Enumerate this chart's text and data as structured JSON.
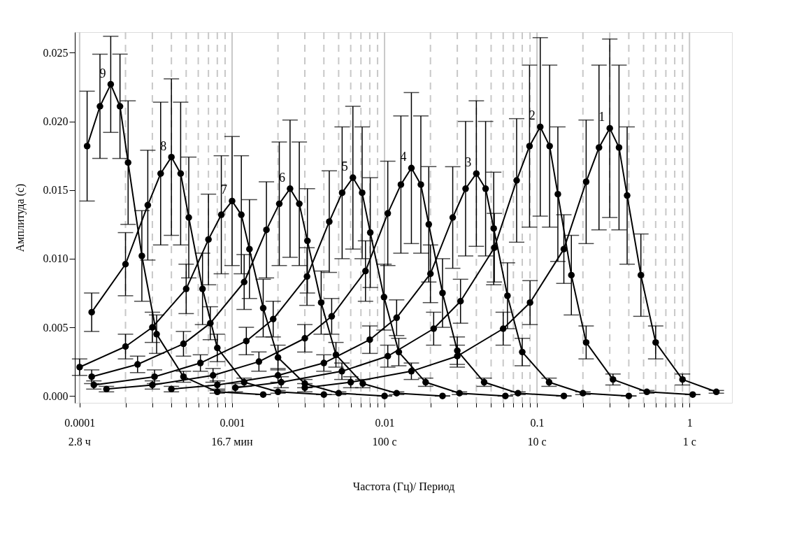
{
  "chart_data": {
    "type": "line",
    "xlabel": "Частота (Гц)/ Период",
    "ylabel": "Амплитуда (с)",
    "log": "x",
    "xlim": [
      9.3e-05,
      1.9
    ],
    "ylim": [
      -0.0005,
      0.0265
    ],
    "annotations": [
      "2.8 ч",
      "16.7 мин",
      "100 с",
      "10 с",
      "1 с"
    ],
    "xticks": [
      {
        "value": 0.0001,
        "label": "0.0001"
      },
      {
        "value": 0.0002,
        "label": null
      },
      {
        "value": 0.0003,
        "label": null
      },
      {
        "value": 0.0004,
        "label": null
      },
      {
        "value": 0.0005,
        "label": null
      },
      {
        "value": 0.0006,
        "label": null
      },
      {
        "value": 0.0007,
        "label": null
      },
      {
        "value": 0.0008,
        "label": null
      },
      {
        "value": 0.0009,
        "label": null
      },
      {
        "value": 0.001,
        "label": "0.001"
      },
      {
        "value": 0.002,
        "label": null
      },
      {
        "value": 0.003,
        "label": null
      },
      {
        "value": 0.004,
        "label": null
      },
      {
        "value": 0.005,
        "label": null
      },
      {
        "value": 0.006,
        "label": null
      },
      {
        "value": 0.007,
        "label": null
      },
      {
        "value": 0.008,
        "label": null
      },
      {
        "value": 0.009,
        "label": null
      },
      {
        "value": 0.01,
        "label": "0.01"
      },
      {
        "value": 0.02,
        "label": null
      },
      {
        "value": 0.03,
        "label": null
      },
      {
        "value": 0.04,
        "label": null
      },
      {
        "value": 0.05,
        "label": null
      },
      {
        "value": 0.06,
        "label": null
      },
      {
        "value": 0.07,
        "label": null
      },
      {
        "value": 0.08,
        "label": null
      },
      {
        "value": 0.09,
        "label": null
      },
      {
        "value": 0.1,
        "label": "0.1"
      },
      {
        "value": 0.2,
        "label": null
      },
      {
        "value": 0.3,
        "label": null
      },
      {
        "value": 0.4,
        "label": null
      },
      {
        "value": 0.5,
        "label": null
      },
      {
        "value": 0.6,
        "label": null
      },
      {
        "value": 0.7,
        "label": null
      },
      {
        "value": 0.8,
        "label": null
      },
      {
        "value": 0.9,
        "label": null
      },
      {
        "value": 1,
        "label": "1"
      }
    ],
    "yticks": [
      {
        "value": 0,
        "label": "0.000"
      },
      {
        "value": 0.005,
        "label": "0.005"
      },
      {
        "value": 0.01,
        "label": "0.010"
      },
      {
        "value": 0.015,
        "label": "0.015"
      },
      {
        "value": 0.02,
        "label": "0.020"
      },
      {
        "value": 0.025,
        "label": "0.025"
      }
    ],
    "grid": "x",
    "marker": "circle",
    "line_style": "solid",
    "series": [
      {
        "name": "1",
        "color": "#000000",
        "x": [
          0.003,
          0.006,
          0.015,
          0.03,
          0.06,
          0.09,
          0.15,
          0.21,
          0.255,
          0.3,
          0.345,
          0.39,
          0.48,
          0.6,
          0.9,
          1.5
        ],
        "values": [
          0.0006,
          0.001,
          0.0018,
          0.0029,
          0.0049,
          0.0068,
          0.0107,
          0.0156,
          0.0181,
          0.0195,
          0.0181,
          0.0146,
          0.0088,
          0.0039,
          0.0012,
          0.0003
        ],
        "errors": [
          0.0003,
          0.0004,
          0.0006,
          0.0008,
          0.0012,
          0.0016,
          0.0025,
          0.0045,
          0.006,
          0.0065,
          0.006,
          0.005,
          0.003,
          0.0012,
          0.0004,
          0.0001
        ]
      },
      {
        "name": "2",
        "color": "#000000",
        "x": [
          0.00105,
          0.0021,
          0.00525,
          0.0105,
          0.021,
          0.0315,
          0.0525,
          0.0735,
          0.0893,
          0.105,
          0.121,
          0.137,
          0.168,
          0.21,
          0.315,
          0.525,
          1.05
        ],
        "values": [
          0.0006,
          0.001,
          0.0018,
          0.0029,
          0.0049,
          0.0069,
          0.0108,
          0.0157,
          0.0182,
          0.0196,
          0.0182,
          0.0147,
          0.0088,
          0.0039,
          0.0012,
          0.0003,
          0.0001
        ],
        "errors": [
          0.0003,
          0.0004,
          0.0006,
          0.0008,
          0.0012,
          0.0016,
          0.0025,
          0.0045,
          0.0059,
          0.0065,
          0.0059,
          0.0049,
          0.0029,
          0.0012,
          0.0004,
          0.0001,
          0.0
        ]
      },
      {
        "name": "3",
        "color": "#000000",
        "x": [
          0.0004,
          0.0008,
          0.002,
          0.004,
          0.008,
          0.012,
          0.02,
          0.028,
          0.034,
          0.04,
          0.046,
          0.052,
          0.064,
          0.08,
          0.12,
          0.2,
          0.4
        ],
        "values": [
          0.0005,
          0.0008,
          0.0015,
          0.0024,
          0.0041,
          0.0057,
          0.0089,
          0.013,
          0.0151,
          0.0162,
          0.0151,
          0.0122,
          0.0073,
          0.0032,
          0.001,
          0.0002,
          0.0
        ],
        "errors": [
          0.0002,
          0.0003,
          0.0005,
          0.0006,
          0.001,
          0.0013,
          0.0021,
          0.0037,
          0.0049,
          0.0053,
          0.0049,
          0.0041,
          0.0024,
          0.001,
          0.0003,
          0.0001,
          0.0
        ]
      },
      {
        "name": "4",
        "color": "#000000",
        "x": [
          0.00015,
          0.0003,
          0.00075,
          0.0015,
          0.003,
          0.0045,
          0.0075,
          0.0105,
          0.0128,
          0.015,
          0.0173,
          0.0195,
          0.024,
          0.03,
          0.045,
          0.075,
          0.15
        ],
        "values": [
          0.0005,
          0.0008,
          0.0015,
          0.0025,
          0.0042,
          0.0058,
          0.0091,
          0.0133,
          0.0154,
          0.0166,
          0.0154,
          0.0125,
          0.0075,
          0.0033,
          0.001,
          0.0002,
          0.0
        ],
        "errors": [
          0.0002,
          0.0003,
          0.0005,
          0.0007,
          0.001,
          0.0013,
          0.0022,
          0.0038,
          0.005,
          0.0055,
          0.005,
          0.0042,
          0.0025,
          0.001,
          0.0003,
          0.0001,
          0.0
        ]
      },
      {
        "name": "5",
        "color": "#000000",
        "x": [
          0.000124,
          0.00031,
          0.00062,
          0.00124,
          0.00186,
          0.0031,
          0.00434,
          0.00527,
          0.0062,
          0.00713,
          0.00806,
          0.00992,
          0.0124,
          0.0186,
          0.031,
          0.062
        ],
        "values": [
          0.0008,
          0.0014,
          0.0024,
          0.004,
          0.0056,
          0.0087,
          0.0127,
          0.0148,
          0.0159,
          0.0148,
          0.0119,
          0.0072,
          0.0032,
          0.001,
          0.0002,
          0.0
        ],
        "errors": [
          0.0003,
          0.0005,
          0.0006,
          0.001,
          0.0013,
          0.0021,
          0.0037,
          0.0048,
          0.0052,
          0.0048,
          0.004,
          0.0024,
          0.001,
          0.0003,
          0.0001,
          0.0
        ]
      },
      {
        "name": "6",
        "color": "#000000",
        "x": [
          0.00012,
          0.00024,
          0.00048,
          0.00072,
          0.0012,
          0.00168,
          0.00204,
          0.0024,
          0.00276,
          0.00312,
          0.00384,
          0.0048,
          0.0072,
          0.012,
          0.024
        ],
        "values": [
          0.0014,
          0.0023,
          0.0038,
          0.0053,
          0.0083,
          0.0121,
          0.014,
          0.0151,
          0.014,
          0.0113,
          0.0068,
          0.003,
          0.0009,
          0.0002,
          0.0
        ],
        "errors": [
          0.0005,
          0.0006,
          0.0009,
          0.0012,
          0.002,
          0.0035,
          0.0045,
          0.005,
          0.0045,
          0.0038,
          0.0023,
          0.0009,
          0.0003,
          0.0001,
          0.0
        ]
      },
      {
        "name": "7",
        "color": "#000000",
        "x": [
          0.0001,
          0.0002,
          0.0003,
          0.0005,
          0.0007,
          0.00085,
          0.001,
          0.00115,
          0.0013,
          0.0016,
          0.002,
          0.003,
          0.005,
          0.01
        ],
        "values": [
          0.0021,
          0.0036,
          0.005,
          0.0078,
          0.0114,
          0.0132,
          0.0142,
          0.0132,
          0.0107,
          0.0064,
          0.0028,
          0.0009,
          0.0002,
          0.0
        ],
        "errors": [
          0.0006,
          0.0009,
          0.0011,
          0.0018,
          0.0033,
          0.0043,
          0.0047,
          0.0043,
          0.0036,
          0.0021,
          0.0009,
          0.0003,
          0.0001,
          0.0
        ]
      },
      {
        "name": "8",
        "color": "#000000",
        "x": [
          0.00012,
          0.0002,
          0.00028,
          0.00034,
          0.0004,
          0.00046,
          0.00052,
          0.00064,
          0.0008,
          0.0012,
          0.002,
          0.004
        ],
        "values": [
          0.0061,
          0.0096,
          0.0139,
          0.0162,
          0.0174,
          0.0162,
          0.013,
          0.0078,
          0.0035,
          0.001,
          0.0003,
          0.0001
        ],
        "errors": [
          0.0014,
          0.0023,
          0.004,
          0.0052,
          0.0057,
          0.0052,
          0.0044,
          0.0026,
          0.001,
          0.0003,
          0.0001,
          0.0
        ]
      },
      {
        "name": "9",
        "color": "#000000",
        "x": [
          0.000112,
          0.000136,
          0.00016,
          0.000184,
          0.000208,
          0.000256,
          0.00032,
          0.00048,
          0.0008,
          0.0016
        ],
        "values": [
          0.0182,
          0.0211,
          0.0227,
          0.0211,
          0.017,
          0.0102,
          0.0045,
          0.0014,
          0.0003,
          0.0001
        ],
        "errors": [
          0.004,
          0.0038,
          0.0035,
          0.0038,
          0.0045,
          0.0033,
          0.0014,
          0.0004,
          0.0001,
          0.0
        ]
      }
    ]
  }
}
